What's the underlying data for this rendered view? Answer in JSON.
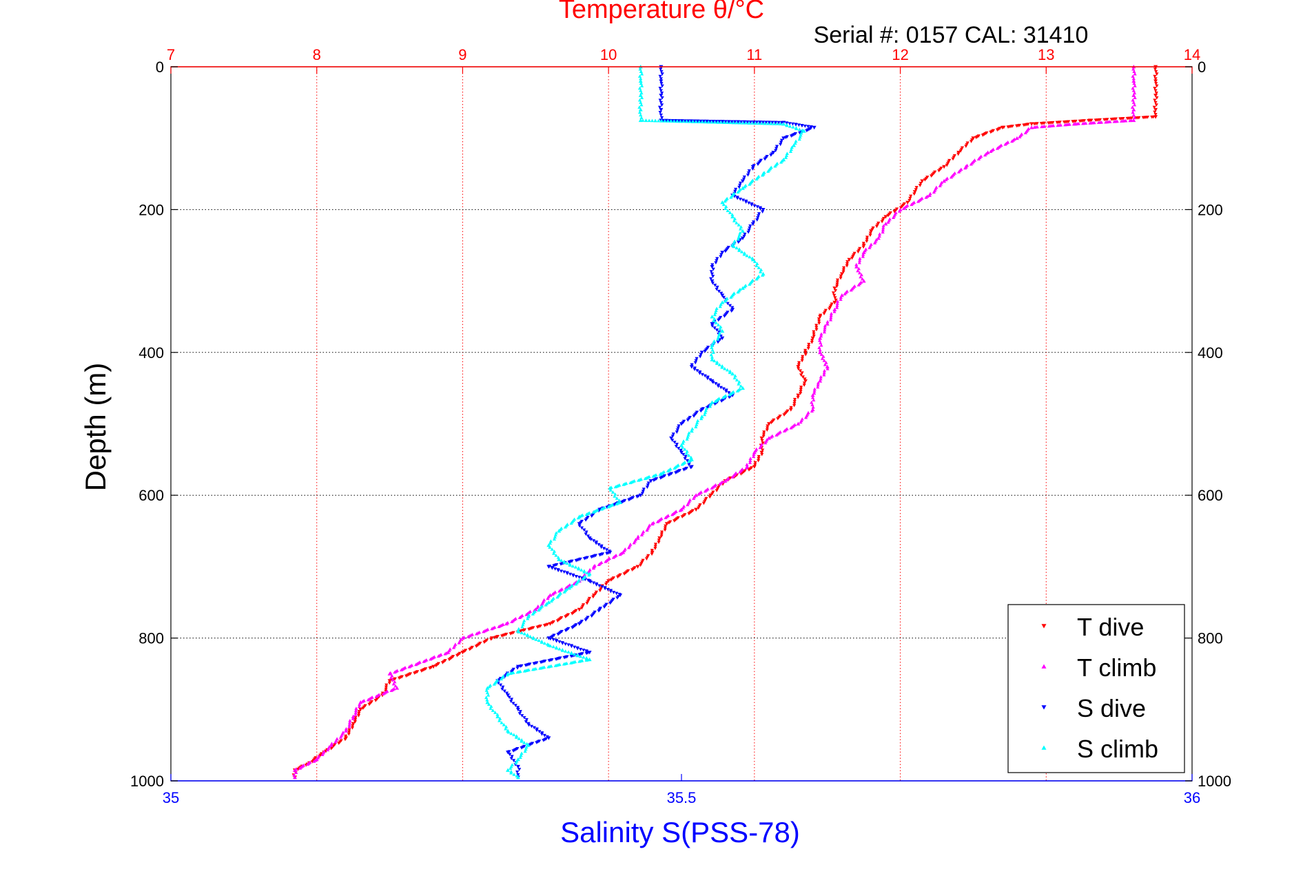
{
  "chart_data": {
    "type": "scatter",
    "title": "Temperature θ/°C",
    "subtitle": "Serial #: 0157  CAL: 31410",
    "xlabel": "Salinity S(PSS-78)",
    "ylabel": "Depth (m)",
    "ylim": [
      0,
      1000
    ],
    "y_reversed": true,
    "y_ticks": [
      "0",
      "200",
      "400",
      "600",
      "800",
      "1000"
    ],
    "temperature_axis": {
      "position": "top",
      "range": [
        7,
        14
      ],
      "ticks": [
        "7",
        "8",
        "9",
        "10",
        "11",
        "12",
        "13",
        "14"
      ],
      "color": "#ff0000"
    },
    "salinity_axis": {
      "position": "bottom",
      "range": [
        35,
        36
      ],
      "ticks": [
        "35",
        "35.5",
        "36"
      ],
      "color": "#0000ff"
    },
    "grid": true,
    "legend_position": "bottom-right",
    "series": [
      {
        "name": "T dive",
        "axis": "temperature",
        "color": "#ff0000",
        "marker": "triangle-down",
        "points": [
          [
            13.75,
            0
          ],
          [
            13.75,
            20
          ],
          [
            13.75,
            40
          ],
          [
            13.75,
            60
          ],
          [
            13.75,
            70
          ],
          [
            13.3,
            75
          ],
          [
            12.9,
            80
          ],
          [
            12.7,
            85
          ],
          [
            12.5,
            100
          ],
          [
            12.4,
            120
          ],
          [
            12.3,
            140
          ],
          [
            12.15,
            160
          ],
          [
            12.1,
            175
          ],
          [
            12.05,
            190
          ],
          [
            11.9,
            210
          ],
          [
            11.8,
            230
          ],
          [
            11.75,
            250
          ],
          [
            11.65,
            270
          ],
          [
            11.6,
            290
          ],
          [
            11.55,
            310
          ],
          [
            11.55,
            330
          ],
          [
            11.45,
            350
          ],
          [
            11.4,
            380
          ],
          [
            11.35,
            400
          ],
          [
            11.3,
            420
          ],
          [
            11.35,
            440
          ],
          [
            11.3,
            460
          ],
          [
            11.25,
            480
          ],
          [
            11.1,
            500
          ],
          [
            11.05,
            520
          ],
          [
            11.05,
            540
          ],
          [
            11.0,
            560
          ],
          [
            10.8,
            580
          ],
          [
            10.7,
            600
          ],
          [
            10.6,
            620
          ],
          [
            10.4,
            640
          ],
          [
            10.35,
            660
          ],
          [
            10.3,
            680
          ],
          [
            10.2,
            700
          ],
          [
            10.0,
            720
          ],
          [
            9.9,
            740
          ],
          [
            9.8,
            760
          ],
          [
            9.6,
            780
          ],
          [
            9.4,
            790
          ],
          [
            9.2,
            800
          ],
          [
            9.0,
            820
          ],
          [
            8.8,
            840
          ],
          [
            8.5,
            860
          ],
          [
            8.45,
            880
          ],
          [
            8.3,
            900
          ],
          [
            8.25,
            920
          ],
          [
            8.2,
            940
          ],
          [
            8.05,
            960
          ],
          [
            7.95,
            975
          ],
          [
            7.85,
            985
          ],
          [
            7.85,
            995
          ]
        ]
      },
      {
        "name": "T climb",
        "axis": "temperature",
        "color": "#ff00ff",
        "marker": "triangle-up",
        "points": [
          [
            13.6,
            0
          ],
          [
            13.6,
            20
          ],
          [
            13.6,
            40
          ],
          [
            13.6,
            60
          ],
          [
            13.6,
            75
          ],
          [
            13.2,
            80
          ],
          [
            12.9,
            85
          ],
          [
            12.8,
            100
          ],
          [
            12.6,
            120
          ],
          [
            12.45,
            140
          ],
          [
            12.3,
            160
          ],
          [
            12.2,
            180
          ],
          [
            12.0,
            200
          ],
          [
            11.9,
            220
          ],
          [
            11.85,
            240
          ],
          [
            11.75,
            260
          ],
          [
            11.7,
            280
          ],
          [
            11.75,
            300
          ],
          [
            11.6,
            320
          ],
          [
            11.55,
            340
          ],
          [
            11.5,
            360
          ],
          [
            11.45,
            380
          ],
          [
            11.45,
            400
          ],
          [
            11.5,
            420
          ],
          [
            11.45,
            440
          ],
          [
            11.4,
            460
          ],
          [
            11.4,
            480
          ],
          [
            11.3,
            500
          ],
          [
            11.1,
            520
          ],
          [
            11.0,
            540
          ],
          [
            10.95,
            560
          ],
          [
            10.8,
            580
          ],
          [
            10.6,
            600
          ],
          [
            10.5,
            620
          ],
          [
            10.3,
            640
          ],
          [
            10.2,
            660
          ],
          [
            10.1,
            680
          ],
          [
            9.9,
            700
          ],
          [
            9.8,
            720
          ],
          [
            9.6,
            740
          ],
          [
            9.5,
            760
          ],
          [
            9.3,
            780
          ],
          [
            9.0,
            800
          ],
          [
            8.9,
            820
          ],
          [
            8.5,
            850
          ],
          [
            8.55,
            870
          ],
          [
            8.3,
            890
          ],
          [
            8.25,
            910
          ],
          [
            8.2,
            930
          ],
          [
            8.1,
            950
          ],
          [
            8.0,
            970
          ],
          [
            7.85,
            985
          ],
          [
            7.85,
            995
          ]
        ]
      },
      {
        "name": "S dive",
        "axis": "salinity",
        "color": "#0000ff",
        "marker": "triangle-down",
        "points": [
          [
            35.48,
            0
          ],
          [
            35.48,
            20
          ],
          [
            35.48,
            40
          ],
          [
            35.48,
            60
          ],
          [
            35.48,
            75
          ],
          [
            35.6,
            78
          ],
          [
            35.63,
            85
          ],
          [
            35.6,
            100
          ],
          [
            35.59,
            120
          ],
          [
            35.57,
            140
          ],
          [
            35.56,
            160
          ],
          [
            35.55,
            180
          ],
          [
            35.58,
            200
          ],
          [
            35.57,
            220
          ],
          [
            35.56,
            240
          ],
          [
            35.54,
            260
          ],
          [
            35.53,
            280
          ],
          [
            35.53,
            300
          ],
          [
            35.54,
            320
          ],
          [
            35.55,
            340
          ],
          [
            35.53,
            360
          ],
          [
            35.54,
            380
          ],
          [
            35.52,
            400
          ],
          [
            35.51,
            420
          ],
          [
            35.53,
            440
          ],
          [
            35.55,
            460
          ],
          [
            35.52,
            480
          ],
          [
            35.5,
            500
          ],
          [
            35.49,
            520
          ],
          [
            35.5,
            540
          ],
          [
            35.51,
            560
          ],
          [
            35.47,
            580
          ],
          [
            35.46,
            600
          ],
          [
            35.42,
            620
          ],
          [
            35.4,
            640
          ],
          [
            35.41,
            660
          ],
          [
            35.43,
            680
          ],
          [
            35.37,
            700
          ],
          [
            35.41,
            720
          ],
          [
            35.44,
            740
          ],
          [
            35.42,
            760
          ],
          [
            35.4,
            780
          ],
          [
            35.37,
            800
          ],
          [
            35.41,
            820
          ],
          [
            35.34,
            840
          ],
          [
            35.32,
            860
          ],
          [
            35.33,
            880
          ],
          [
            35.34,
            900
          ],
          [
            35.35,
            920
          ],
          [
            35.37,
            940
          ],
          [
            35.33,
            960
          ],
          [
            35.34,
            980
          ],
          [
            35.34,
            995
          ]
        ]
      },
      {
        "name": "S climb",
        "axis": "salinity",
        "color": "#00ffff",
        "marker": "triangle-up",
        "points": [
          [
            35.46,
            0
          ],
          [
            35.46,
            20
          ],
          [
            35.46,
            40
          ],
          [
            35.46,
            60
          ],
          [
            35.46,
            75
          ],
          [
            35.6,
            80
          ],
          [
            35.62,
            90
          ],
          [
            35.61,
            110
          ],
          [
            35.6,
            130
          ],
          [
            35.58,
            150
          ],
          [
            35.56,
            170
          ],
          [
            35.54,
            190
          ],
          [
            35.55,
            210
          ],
          [
            35.56,
            230
          ],
          [
            35.55,
            250
          ],
          [
            35.57,
            270
          ],
          [
            35.58,
            290
          ],
          [
            35.56,
            310
          ],
          [
            35.54,
            330
          ],
          [
            35.53,
            350
          ],
          [
            35.54,
            370
          ],
          [
            35.53,
            390
          ],
          [
            35.53,
            410
          ],
          [
            35.55,
            430
          ],
          [
            35.56,
            450
          ],
          [
            35.53,
            470
          ],
          [
            35.52,
            490
          ],
          [
            35.51,
            510
          ],
          [
            35.5,
            530
          ],
          [
            35.51,
            550
          ],
          [
            35.48,
            570
          ],
          [
            35.43,
            590
          ],
          [
            35.44,
            610
          ],
          [
            35.4,
            630
          ],
          [
            35.38,
            650
          ],
          [
            35.37,
            670
          ],
          [
            35.38,
            690
          ],
          [
            35.41,
            710
          ],
          [
            35.39,
            730
          ],
          [
            35.37,
            750
          ],
          [
            35.35,
            770
          ],
          [
            35.34,
            790
          ],
          [
            35.37,
            810
          ],
          [
            35.41,
            830
          ],
          [
            35.33,
            850
          ],
          [
            35.31,
            870
          ],
          [
            35.31,
            890
          ],
          [
            35.32,
            910
          ],
          [
            35.33,
            930
          ],
          [
            35.35,
            950
          ],
          [
            35.34,
            970
          ],
          [
            35.33,
            985
          ],
          [
            35.34,
            995
          ]
        ]
      }
    ]
  }
}
